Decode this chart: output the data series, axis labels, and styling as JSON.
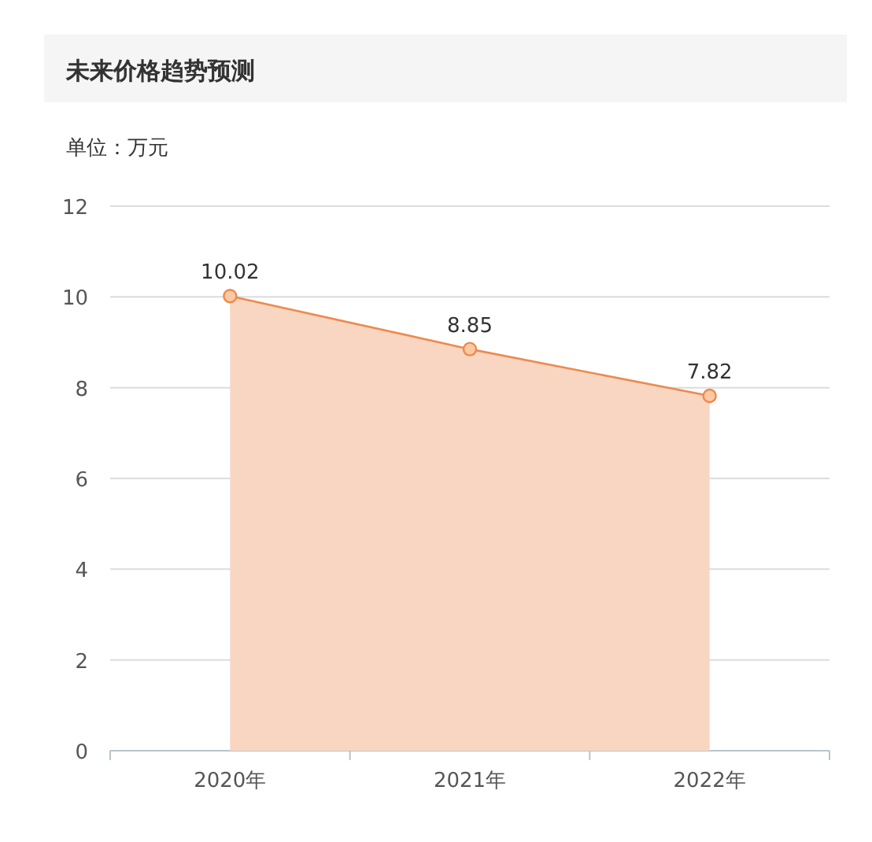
{
  "chart_data": {
    "type": "area",
    "title": "未来价格趋势预测",
    "ylabel": "单位：万元",
    "categories": [
      "2020年",
      "2021年",
      "2022年"
    ],
    "series": [
      {
        "color": "#ee8a4e",
        "values": [
          10.02,
          8.85,
          7.82
        ]
      }
    ],
    "ylim": [
      0,
      12
    ],
    "yticks": [
      0,
      2,
      4,
      6,
      8,
      10,
      12
    ],
    "grid": "y",
    "marker": "circle",
    "data_labels": true
  }
}
